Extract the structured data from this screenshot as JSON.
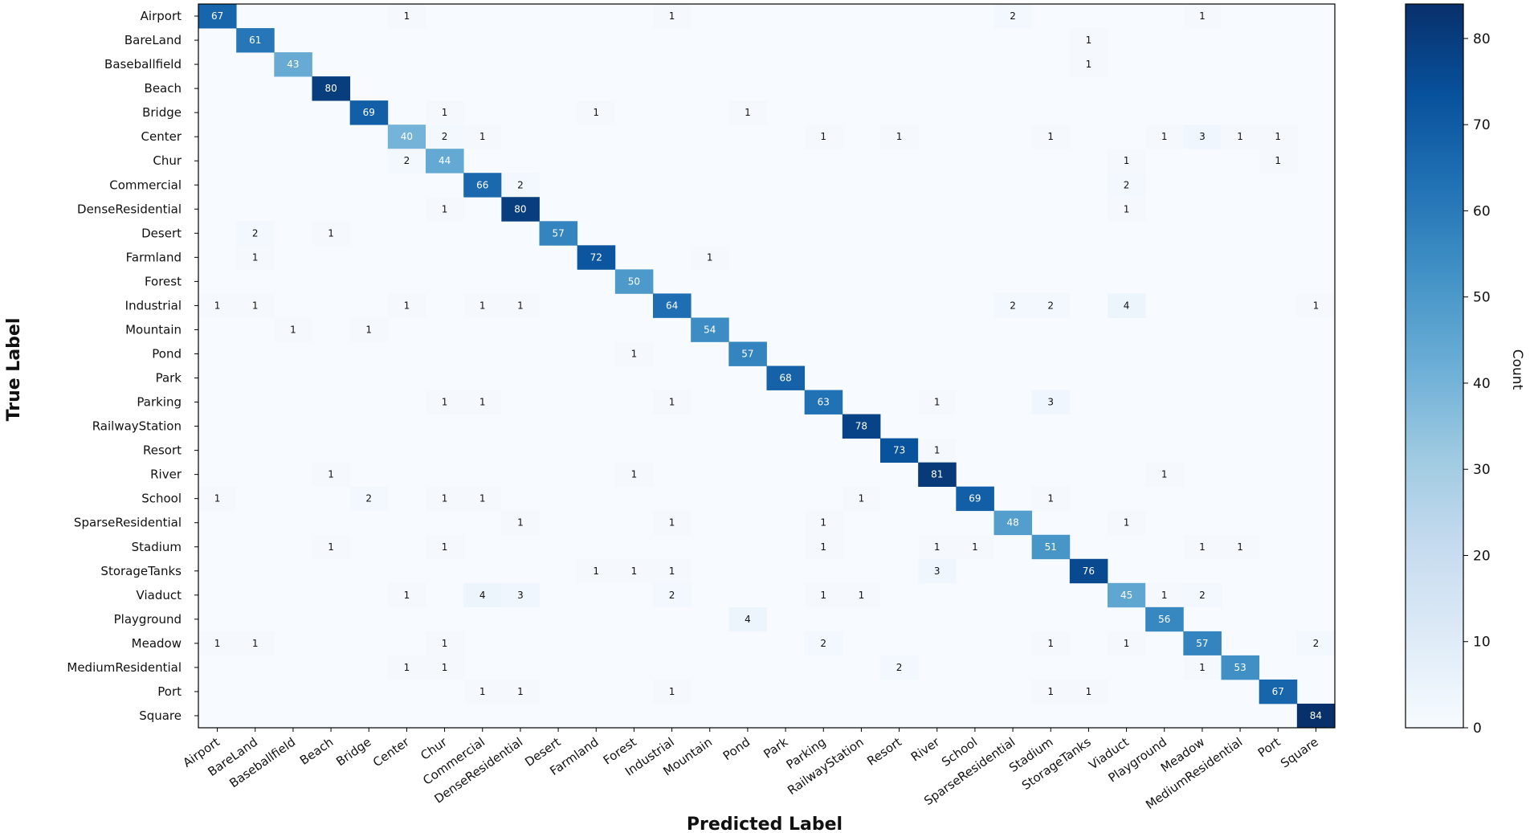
{
  "chart_data": {
    "type": "heatmap",
    "title": "",
    "xlabel": "Predicted Label",
    "ylabel": "True Label",
    "colorbar_label": "Count",
    "colorbar_range": [
      0,
      84
    ],
    "colorbar_ticks": [
      0,
      10,
      20,
      30,
      40,
      50,
      60,
      70,
      80
    ],
    "colormap": "Blues",
    "categories": [
      "Airport",
      "BareLand",
      "Baseballfield",
      "Beach",
      "Bridge",
      "Center",
      "Chur",
      "Commercial",
      "DenseResidential",
      "Desert",
      "Farmland",
      "Forest",
      "Industrial",
      "Mountain",
      "Pond",
      "Park",
      "Parking",
      "RailwayStation",
      "Resort",
      "River",
      "School",
      "SparseResidential",
      "Stadium",
      "StorageTanks",
      "Viaduct",
      "Playground",
      "Meadow",
      "MediumResidential",
      "Port",
      "Square"
    ],
    "cells": [
      [
        0,
        0,
        67
      ],
      [
        0,
        5,
        1
      ],
      [
        0,
        12,
        1
      ],
      [
        0,
        21,
        2
      ],
      [
        0,
        26,
        1
      ],
      [
        1,
        1,
        61
      ],
      [
        1,
        23,
        1
      ],
      [
        2,
        2,
        43
      ],
      [
        2,
        23,
        1
      ],
      [
        3,
        3,
        80
      ],
      [
        4,
        4,
        69
      ],
      [
        4,
        6,
        1
      ],
      [
        4,
        10,
        1
      ],
      [
        4,
        14,
        1
      ],
      [
        5,
        5,
        40
      ],
      [
        5,
        6,
        2
      ],
      [
        5,
        7,
        1
      ],
      [
        5,
        16,
        1
      ],
      [
        5,
        18,
        1
      ],
      [
        5,
        22,
        1
      ],
      [
        5,
        25,
        1
      ],
      [
        5,
        26,
        3
      ],
      [
        5,
        27,
        1
      ],
      [
        5,
        28,
        1
      ],
      [
        6,
        5,
        2
      ],
      [
        6,
        6,
        44
      ],
      [
        6,
        24,
        1
      ],
      [
        6,
        28,
        1
      ],
      [
        7,
        7,
        66
      ],
      [
        7,
        8,
        2
      ],
      [
        7,
        24,
        2
      ],
      [
        8,
        6,
        1
      ],
      [
        8,
        8,
        80
      ],
      [
        8,
        24,
        1
      ],
      [
        9,
        1,
        2
      ],
      [
        9,
        3,
        1
      ],
      [
        9,
        9,
        57
      ],
      [
        10,
        1,
        1
      ],
      [
        10,
        10,
        72
      ],
      [
        10,
        13,
        1
      ],
      [
        11,
        11,
        50
      ],
      [
        12,
        0,
        1
      ],
      [
        12,
        1,
        1
      ],
      [
        12,
        5,
        1
      ],
      [
        12,
        7,
        1
      ],
      [
        12,
        8,
        1
      ],
      [
        12,
        12,
        64
      ],
      [
        12,
        21,
        2
      ],
      [
        12,
        22,
        2
      ],
      [
        12,
        24,
        4
      ],
      [
        12,
        29,
        1
      ],
      [
        13,
        2,
        1
      ],
      [
        13,
        4,
        1
      ],
      [
        13,
        13,
        54
      ],
      [
        14,
        11,
        1
      ],
      [
        14,
        14,
        57
      ],
      [
        15,
        15,
        68
      ],
      [
        16,
        6,
        1
      ],
      [
        16,
        7,
        1
      ],
      [
        16,
        12,
        1
      ],
      [
        16,
        16,
        63
      ],
      [
        16,
        19,
        1
      ],
      [
        16,
        22,
        3
      ],
      [
        17,
        17,
        78
      ],
      [
        18,
        18,
        73
      ],
      [
        18,
        19,
        1
      ],
      [
        19,
        3,
        1
      ],
      [
        19,
        11,
        1
      ],
      [
        19,
        19,
        81
      ],
      [
        19,
        25,
        1
      ],
      [
        20,
        0,
        1
      ],
      [
        20,
        4,
        2
      ],
      [
        20,
        6,
        1
      ],
      [
        20,
        7,
        1
      ],
      [
        20,
        17,
        1
      ],
      [
        20,
        20,
        69
      ],
      [
        20,
        22,
        1
      ],
      [
        21,
        8,
        1
      ],
      [
        21,
        12,
        1
      ],
      [
        21,
        16,
        1
      ],
      [
        21,
        21,
        48
      ],
      [
        21,
        24,
        1
      ],
      [
        22,
        3,
        1
      ],
      [
        22,
        6,
        1
      ],
      [
        22,
        16,
        1
      ],
      [
        22,
        19,
        1
      ],
      [
        22,
        20,
        1
      ],
      [
        22,
        22,
        51
      ],
      [
        22,
        26,
        1
      ],
      [
        22,
        27,
        1
      ],
      [
        23,
        10,
        1
      ],
      [
        23,
        11,
        1
      ],
      [
        23,
        12,
        1
      ],
      [
        23,
        19,
        3
      ],
      [
        23,
        23,
        76
      ],
      [
        24,
        5,
        1
      ],
      [
        24,
        7,
        4
      ],
      [
        24,
        8,
        3
      ],
      [
        24,
        12,
        2
      ],
      [
        24,
        16,
        1
      ],
      [
        24,
        17,
        1
      ],
      [
        24,
        24,
        45
      ],
      [
        24,
        25,
        1
      ],
      [
        24,
        26,
        2
      ],
      [
        25,
        14,
        4
      ],
      [
        25,
        25,
        56
      ],
      [
        26,
        0,
        1
      ],
      [
        26,
        1,
        1
      ],
      [
        26,
        6,
        1
      ],
      [
        26,
        16,
        2
      ],
      [
        26,
        22,
        1
      ],
      [
        26,
        24,
        1
      ],
      [
        26,
        26,
        57
      ],
      [
        26,
        29,
        2
      ],
      [
        27,
        5,
        1
      ],
      [
        27,
        6,
        1
      ],
      [
        27,
        18,
        2
      ],
      [
        27,
        26,
        1
      ],
      [
        27,
        27,
        53
      ],
      [
        28,
        7,
        1
      ],
      [
        28,
        8,
        1
      ],
      [
        28,
        12,
        1
      ],
      [
        28,
        22,
        1
      ],
      [
        28,
        23,
        1
      ],
      [
        28,
        28,
        67
      ],
      [
        29,
        29,
        84
      ]
    ]
  }
}
